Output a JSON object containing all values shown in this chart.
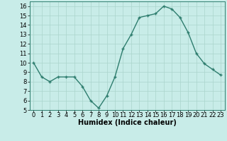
{
  "x": [
    0,
    1,
    2,
    3,
    4,
    5,
    6,
    7,
    8,
    9,
    10,
    11,
    12,
    13,
    14,
    15,
    16,
    17,
    18,
    19,
    20,
    21,
    22,
    23
  ],
  "y": [
    10,
    8.5,
    8,
    8.5,
    8.5,
    8.5,
    7.5,
    6,
    5.2,
    6.5,
    8.5,
    11.5,
    13.0,
    14.8,
    15.0,
    15.2,
    16.0,
    15.7,
    14.8,
    13.2,
    11.0,
    9.9,
    9.3,
    8.7
  ],
  "line_color": "#2e7d6e",
  "marker": "+",
  "marker_size": 3,
  "bg_color": "#c8ece8",
  "grid_color": "#aad4cc",
  "xlabel": "Humidex (Indice chaleur)",
  "ylim": [
    5,
    16.5
  ],
  "xlim": [
    -0.5,
    23.5
  ],
  "yticks": [
    5,
    6,
    7,
    8,
    9,
    10,
    11,
    12,
    13,
    14,
    15,
    16
  ],
  "xticks": [
    0,
    1,
    2,
    3,
    4,
    5,
    6,
    7,
    8,
    9,
    10,
    11,
    12,
    13,
    14,
    15,
    16,
    17,
    18,
    19,
    20,
    21,
    22,
    23
  ],
  "xlabel_fontsize": 7,
  "tick_fontsize": 6,
  "line_width": 1.0,
  "marker_edge_width": 1.0
}
